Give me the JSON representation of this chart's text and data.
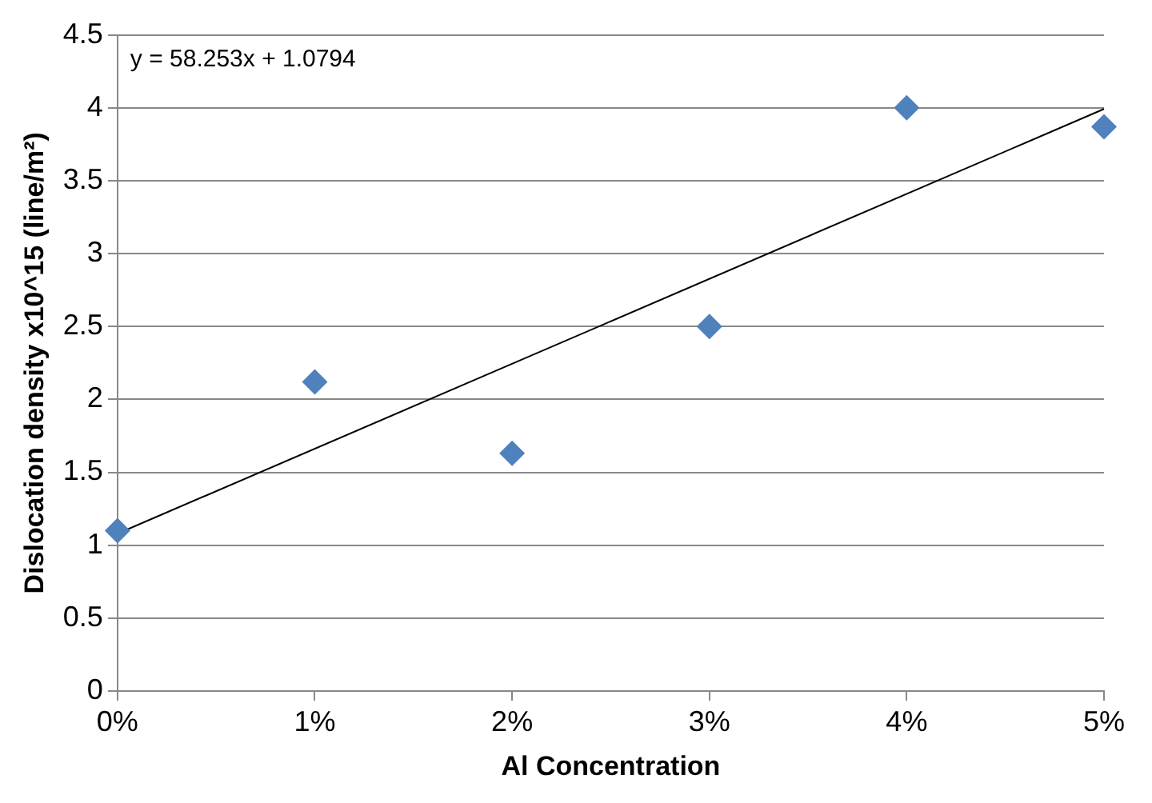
{
  "chart_data": {
    "type": "scatter",
    "xlabel": "Al Concentration",
    "ylabel": "Dislocation density x10^15 (line/m²)",
    "x": [
      0,
      0.01,
      0.02,
      0.03,
      0.04,
      0.05
    ],
    "series": [
      {
        "type": "scatter",
        "color": "#4f81bd",
        "marker": "diamond",
        "values": [
          1.1,
          2.12,
          1.63,
          2.5,
          4.0,
          3.87
        ]
      },
      {
        "type": "line",
        "color": "#000000",
        "marker": "none",
        "x": [
          0,
          0.05
        ],
        "values": [
          1.0794,
          3.992
        ]
      }
    ],
    "xlim": [
      0,
      0.05
    ],
    "xticks": [
      {
        "value": 0,
        "label": "0%"
      },
      {
        "value": 0.01,
        "label": "1%"
      },
      {
        "value": 0.02,
        "label": "2%"
      },
      {
        "value": 0.03,
        "label": "3%"
      },
      {
        "value": 0.04,
        "label": "4%"
      },
      {
        "value": 0.05,
        "label": "5%"
      }
    ],
    "ylim": [
      0,
      4.5
    ],
    "yticks": [
      0,
      0.5,
      1,
      1.5,
      2,
      2.5,
      3,
      3.5,
      4,
      4.5
    ],
    "grid": "y",
    "legend": false,
    "annotations": [
      "y = 58.253x + 1.0794"
    ]
  }
}
